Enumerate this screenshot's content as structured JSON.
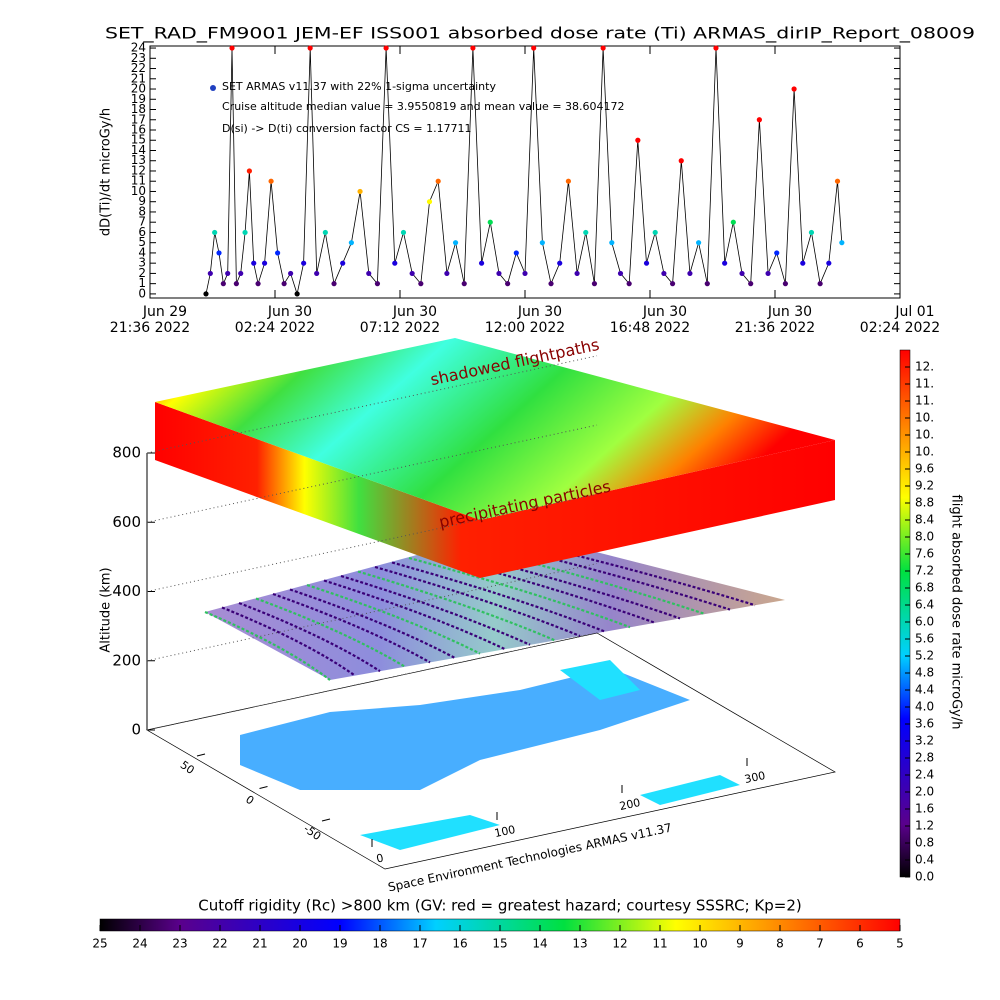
{
  "chart_data": [
    {
      "type": "line",
      "title": "SET_RAD_FM9001  JEM-EF ISS001 absorbed dose rate (Ti) ARMAS_dirIP_Report_08009",
      "y_label": "dD(Ti)/dt microGy/h",
      "annotations": [
        "SET ARMAS v11.37 with 22% 1-sigma uncertainty",
        "Cruise altitude median value = 3.9550819 and mean value = 38.604172",
        "D(si) -> D(ti) conversion factor CS = 1.17711"
      ],
      "x": [
        "2022-06-29T23:45",
        "2022-06-29T23:55",
        "2022-06-30T00:05",
        "2022-06-30T00:15",
        "2022-06-30T00:25",
        "2022-06-30T00:35",
        "2022-06-30T00:45",
        "2022-06-30T00:55",
        "2022-06-30T01:05",
        "2022-06-30T01:15",
        "2022-06-30T01:25",
        "2022-06-30T01:35",
        "2022-06-30T01:45",
        "2022-06-30T02:00",
        "2022-06-30T02:15",
        "2022-06-30T02:30",
        "2022-06-30T02:45",
        "2022-06-30T03:00",
        "2022-06-30T03:15",
        "2022-06-30T03:30",
        "2022-06-30T03:45",
        "2022-06-30T04:00",
        "2022-06-30T04:20",
        "2022-06-30T04:40",
        "2022-06-30T05:00",
        "2022-06-30T05:20",
        "2022-06-30T05:40",
        "2022-06-30T06:00",
        "2022-06-30T06:20",
        "2022-06-30T06:40",
        "2022-06-30T07:00",
        "2022-06-30T07:20",
        "2022-06-30T07:40",
        "2022-06-30T08:00",
        "2022-06-30T08:20",
        "2022-06-30T08:40",
        "2022-06-30T09:00",
        "2022-06-30T09:20",
        "2022-06-30T09:40",
        "2022-06-30T10:00",
        "2022-06-30T10:20",
        "2022-06-30T10:40",
        "2022-06-30T11:00",
        "2022-06-30T11:20",
        "2022-06-30T11:40",
        "2022-06-30T12:00",
        "2022-06-30T12:20",
        "2022-06-30T12:40",
        "2022-06-30T13:00",
        "2022-06-30T13:20",
        "2022-06-30T13:40",
        "2022-06-30T14:00",
        "2022-06-30T14:20",
        "2022-06-30T14:40",
        "2022-06-30T15:00",
        "2022-06-30T15:20",
        "2022-06-30T15:40",
        "2022-06-30T16:00",
        "2022-06-30T16:20",
        "2022-06-30T16:40",
        "2022-06-30T17:00",
        "2022-06-30T17:20",
        "2022-06-30T17:40",
        "2022-06-30T18:00",
        "2022-06-30T18:20",
        "2022-06-30T18:40",
        "2022-06-30T19:00",
        "2022-06-30T19:20",
        "2022-06-30T19:40",
        "2022-06-30T20:00",
        "2022-06-30T20:20",
        "2022-06-30T20:40",
        "2022-06-30T21:00",
        "2022-06-30T21:20",
        "2022-06-30T21:40",
        "2022-06-30T22:00",
        "2022-06-30T22:20",
        "2022-06-30T22:40",
        "2022-06-30T23:00",
        "2022-06-30T23:20",
        "2022-06-30T23:40",
        "2022-07-01T00:00",
        "2022-07-01T00:10"
      ],
      "values": [
        0,
        2,
        6,
        4,
        1,
        2,
        24,
        1,
        2,
        6,
        12,
        3,
        1,
        3,
        11,
        4,
        1,
        2,
        0,
        3,
        24,
        2,
        6,
        1,
        3,
        5,
        10,
        2,
        1,
        24,
        3,
        6,
        2,
        1,
        9,
        11,
        2,
        5,
        1,
        24,
        3,
        7,
        2,
        1,
        4,
        2,
        24,
        5,
        1,
        3,
        11,
        2,
        6,
        1,
        24,
        5,
        2,
        1,
        15,
        3,
        6,
        2,
        1,
        13,
        2,
        5,
        1,
        24,
        3,
        7,
        2,
        1,
        17,
        2,
        4,
        1,
        20,
        3,
        6,
        1,
        3,
        11,
        5
      ],
      "xlim": [
        "2022-06-29T21:36",
        "2022-07-01T02:24"
      ],
      "xticks": [
        {
          "value": "2022-06-29T21:36",
          "label": [
            "Jun 29",
            "21:36 2022"
          ]
        },
        {
          "value": "2022-06-30T02:24",
          "label": [
            "Jun 30",
            "02:24 2022"
          ]
        },
        {
          "value": "2022-06-30T07:12",
          "label": [
            "Jun 30",
            "07:12 2022"
          ]
        },
        {
          "value": "2022-06-30T12:00",
          "label": [
            "Jun 30",
            "12:00 2022"
          ]
        },
        {
          "value": "2022-06-30T16:48",
          "label": [
            "Jun 30",
            "16:48 2022"
          ]
        },
        {
          "value": "2022-06-30T21:36",
          "label": [
            "Jun 30",
            "21:36 2022"
          ]
        },
        {
          "value": "2022-07-01T02:24",
          "label": [
            "Jul 01",
            "02:24 2022"
          ]
        }
      ],
      "ylim": [
        -0.4,
        24.2
      ],
      "yticks": [
        0,
        1,
        2,
        3,
        4,
        5,
        6,
        7,
        8,
        9,
        10,
        11,
        12,
        13,
        14,
        15,
        16,
        17,
        18,
        19,
        20,
        21,
        22,
        23,
        24
      ]
    },
    {
      "type": "surface3d",
      "annotations": [
        "shadowed flightpaths",
        "precipitating particles",
        "Space Environment Technologies ARMAS v11.37"
      ],
      "z_label": "Altitude (km)",
      "zlim": [
        0,
        800
      ],
      "zticks": [
        0,
        200,
        400,
        600,
        800
      ],
      "lat_ticks": [
        50,
        0,
        -50
      ],
      "lon_ticks": [
        0,
        100,
        200,
        300
      ],
      "colorbars": [
        {
          "label": "flight absorbed dose rate microGy/h",
          "lim": [
            0,
            12.4
          ],
          "ticks": [
            {
              "value": 0,
              "label": "0.0"
            },
            {
              "value": 0.4,
              "label": "0.4"
            },
            {
              "value": 0.8,
              "label": "0.8"
            },
            {
              "value": 1.2,
              "label": "1.2"
            },
            {
              "value": 1.6,
              "label": "1.6"
            },
            {
              "value": 2,
              "label": "2.0"
            },
            {
              "value": 2.4,
              "label": "2.4"
            },
            {
              "value": 2.8,
              "label": "2.8"
            },
            {
              "value": 3.2,
              "label": "3.2"
            },
            {
              "value": 3.6,
              "label": "3.6"
            },
            {
              "value": 4,
              "label": "4.0"
            },
            {
              "value": 4.4,
              "label": "4.4"
            },
            {
              "value": 4.8,
              "label": "4.8"
            },
            {
              "value": 5.2,
              "label": "5.2"
            },
            {
              "value": 5.6,
              "label": "5.6"
            },
            {
              "value": 6,
              "label": "6.0"
            },
            {
              "value": 6.4,
              "label": "6.4"
            },
            {
              "value": 6.8,
              "label": "6.8"
            },
            {
              "value": 7.2,
              "label": "7.2"
            },
            {
              "value": 7.6,
              "label": "7.6"
            },
            {
              "value": 8,
              "label": "8.0"
            },
            {
              "value": 8.4,
              "label": "8.4"
            },
            {
              "value": 8.8,
              "label": "8.8"
            },
            {
              "value": 9.2,
              "label": "9.2"
            },
            {
              "value": 9.6,
              "label": "9.6"
            },
            {
              "value": 10,
              "label": "10."
            },
            {
              "value": 10.4,
              "label": "10."
            },
            {
              "value": 10.8,
              "label": "10."
            },
            {
              "value": 11.2,
              "label": "11."
            },
            {
              "value": 11.6,
              "label": "11."
            },
            {
              "value": 12,
              "label": "12."
            }
          ]
        },
        {
          "label": "Cutoff rigidity (Rc) >800 km (GV: red = greatest hazard; courtesy SSSRC; Kp=2)",
          "lim": [
            25,
            5
          ],
          "ticks": [
            25,
            24,
            23,
            22,
            21,
            20,
            19,
            18,
            17,
            16,
            15,
            14,
            13,
            12,
            11,
            10,
            9,
            8,
            7,
            6,
            5
          ]
        }
      ]
    }
  ]
}
